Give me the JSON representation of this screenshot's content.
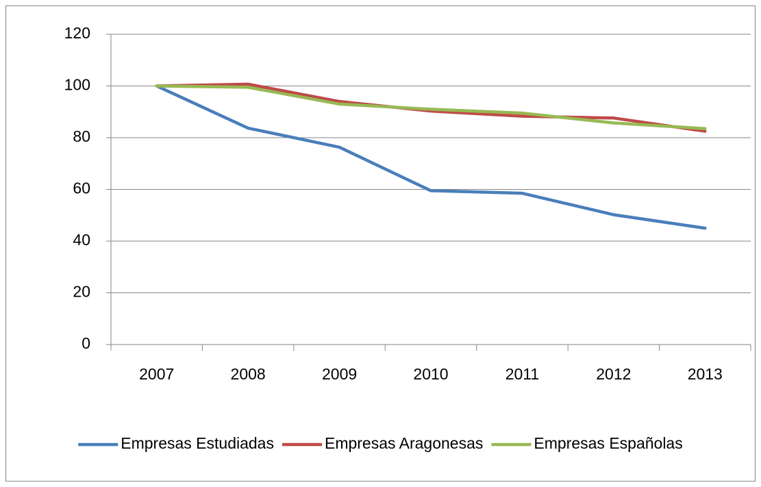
{
  "chart_data": {
    "type": "line",
    "categories": [
      "2007",
      "2008",
      "2009",
      "2010",
      "2011",
      "2012",
      "2013"
    ],
    "series": [
      {
        "name": "Empresas Estudiadas",
        "color": "#4a7ebb",
        "values": [
          100,
          83.7,
          76.3,
          59.5,
          58.5,
          50.2,
          45
        ]
      },
      {
        "name": "Empresas Aragonesas",
        "color": "#be4b48",
        "values": [
          100,
          100.7,
          94,
          90.3,
          88.3,
          87.6,
          82.5
        ]
      },
      {
        "name": "Empresas Españolas",
        "color": "#98b954",
        "values": [
          100,
          99.5,
          93,
          91,
          89.5,
          85.7,
          83.5
        ]
      }
    ],
    "ylim": [
      0,
      120
    ],
    "yticks": [
      0,
      20,
      40,
      60,
      80,
      100,
      120
    ],
    "grid": true,
    "legend": "bottom"
  }
}
